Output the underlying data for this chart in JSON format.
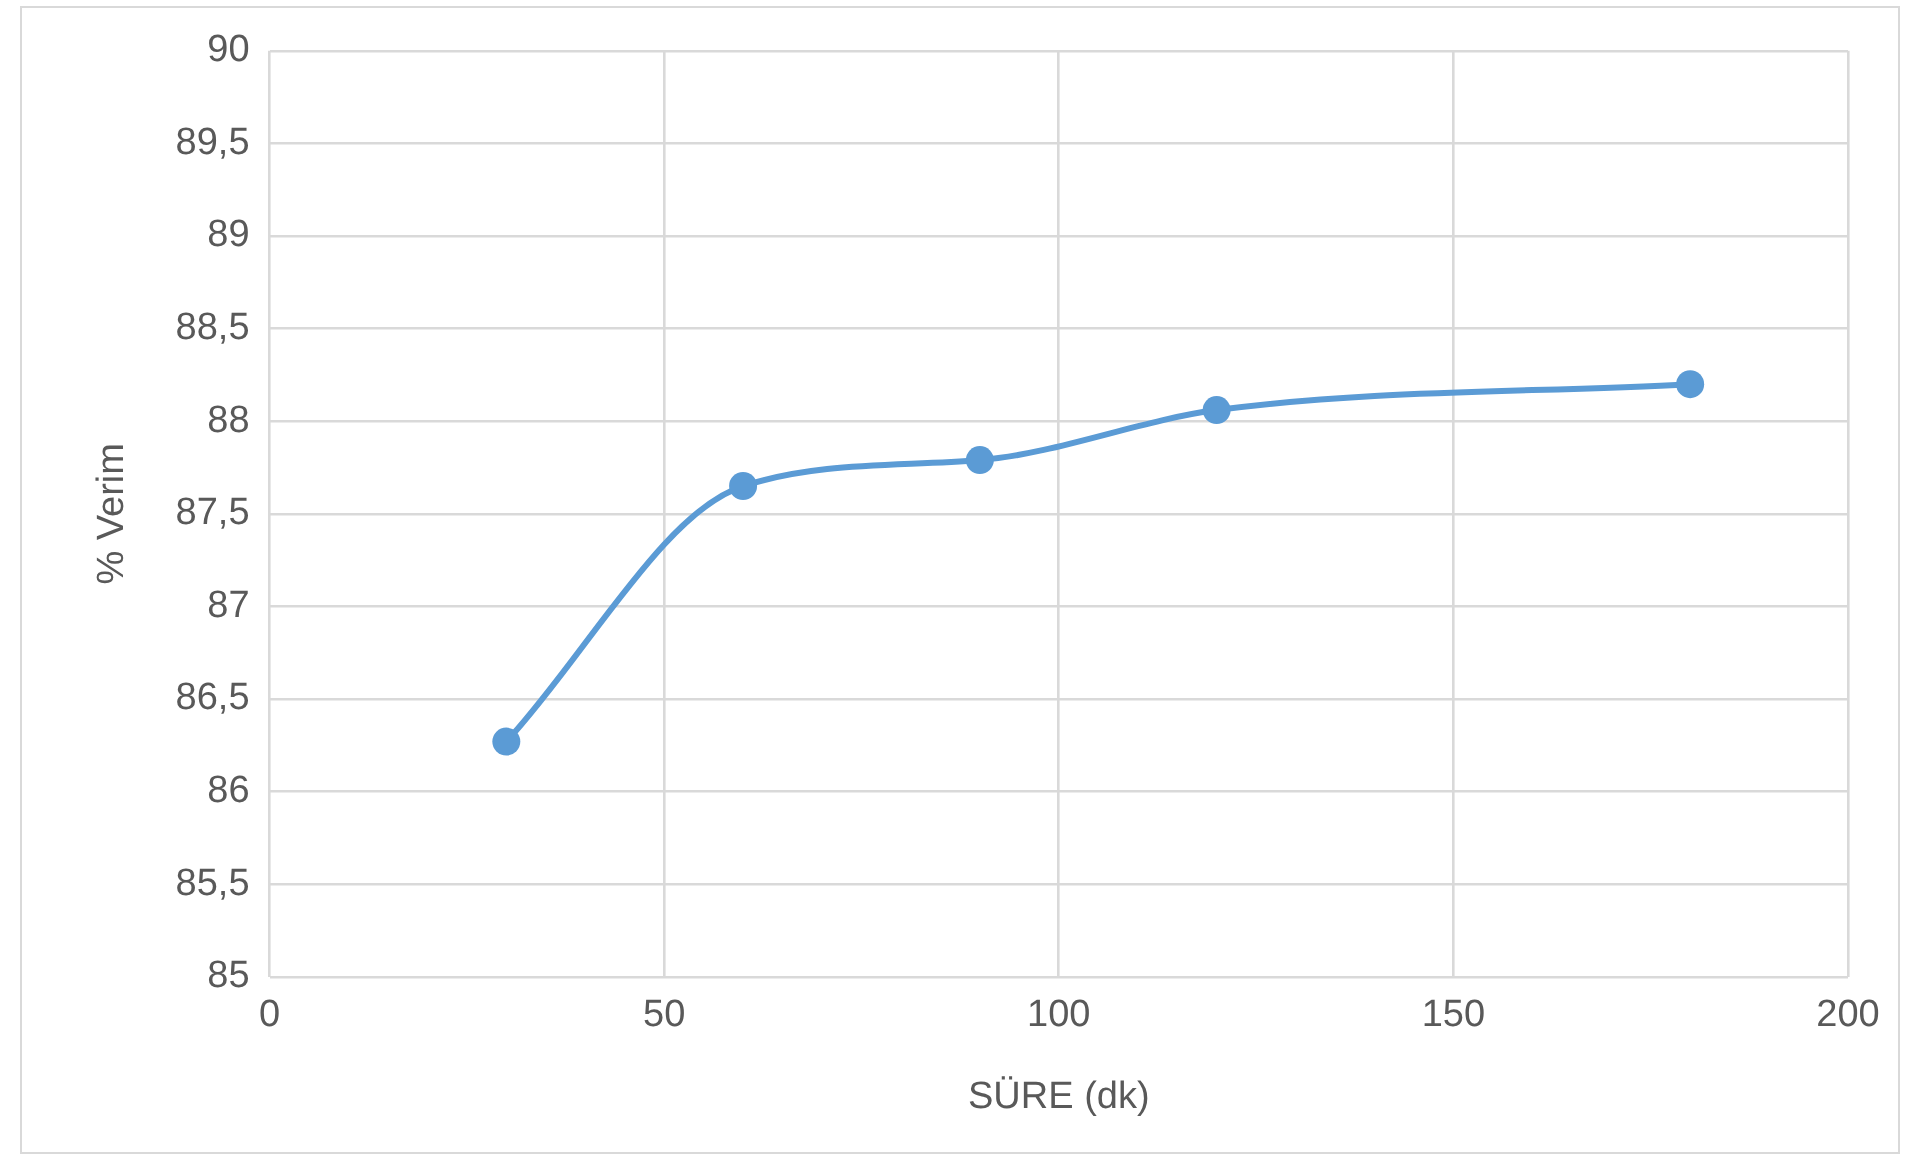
{
  "chart_data": {
    "type": "line",
    "xlabel": "SÜRE (dk)",
    "ylabel": "% Verim",
    "x": [
      30,
      60,
      90,
      120,
      180
    ],
    "series": [
      {
        "color": "#5b9bd5",
        "values": [
          86.27,
          87.65,
          87.79,
          88.06,
          88.2
        ]
      }
    ],
    "xlim": [
      0,
      200
    ],
    "xticks": [
      0,
      50,
      100,
      150,
      200
    ],
    "ylim": [
      85,
      90
    ],
    "yticks": [
      85,
      {
        "value": 85.5,
        "label": "85,5"
      },
      86,
      {
        "value": 86.5,
        "label": "86,5"
      },
      87,
      {
        "value": 87.5,
        "label": "87,5"
      },
      88,
      {
        "value": 88.5,
        "label": "88,5"
      },
      89,
      {
        "value": 89.5,
        "label": "89,5"
      },
      90
    ],
    "grid": true,
    "legend": false,
    "marker": "circle",
    "line_style": "solid"
  }
}
